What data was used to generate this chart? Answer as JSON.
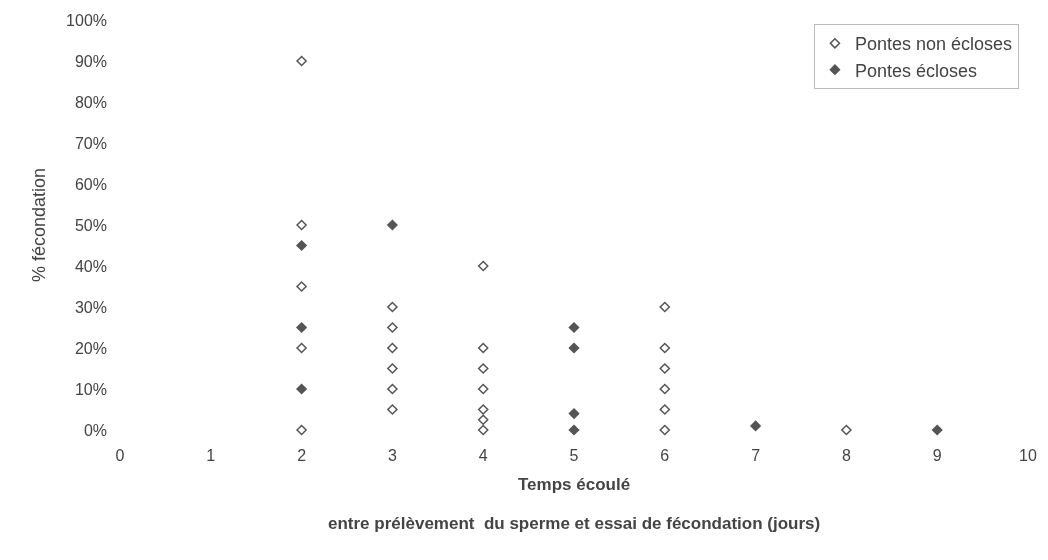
{
  "chart_data": {
    "type": "scatter",
    "xlabel": "Temps écoulé\nentre prélèvement  du sperme et essai de fécondation (jours)",
    "ylabel": "% fécondation",
    "series": [
      {
        "name": "Pontes non écloses",
        "color": "#555555",
        "x": [
          2,
          2,
          2,
          2,
          2,
          3,
          3,
          3,
          3,
          3,
          3,
          4,
          4,
          4,
          4,
          4,
          4,
          4,
          6,
          6,
          6,
          6,
          6,
          6,
          8
        ],
        "values": [
          90,
          50,
          35,
          20,
          0,
          30,
          25,
          20,
          15,
          10,
          5,
          40,
          20,
          15,
          10,
          5,
          2.5,
          0,
          30,
          20,
          15,
          10,
          5,
          0,
          0
        ]
      },
      {
        "name": "Pontes écloses",
        "color": "#555555",
        "x": [
          2,
          2,
          2,
          3,
          5,
          5,
          5,
          5,
          7,
          9
        ],
        "values": [
          45,
          25,
          10,
          50,
          25,
          20,
          4,
          0,
          1,
          0
        ]
      }
    ],
    "xlim": [
      0,
      10
    ],
    "xticks": [
      0,
      1,
      2,
      3,
      4,
      5,
      6,
      7,
      8,
      9,
      10
    ],
    "ylim": [
      0,
      100
    ],
    "yticks": [
      {
        "value": 0,
        "label": "0%"
      },
      {
        "value": 10,
        "label": "10%"
      },
      {
        "value": 20,
        "label": "20%"
      },
      {
        "value": 30,
        "label": "30%"
      },
      {
        "value": 40,
        "label": "40%"
      },
      {
        "value": 50,
        "label": "50%"
      },
      {
        "value": 60,
        "label": "60%"
      },
      {
        "value": 70,
        "label": "70%"
      },
      {
        "value": 80,
        "label": "80%"
      },
      {
        "value": 90,
        "label": "90%"
      },
      {
        "value": 100,
        "label": "100%"
      }
    ],
    "marker": "diamond",
    "legend": "top right"
  }
}
